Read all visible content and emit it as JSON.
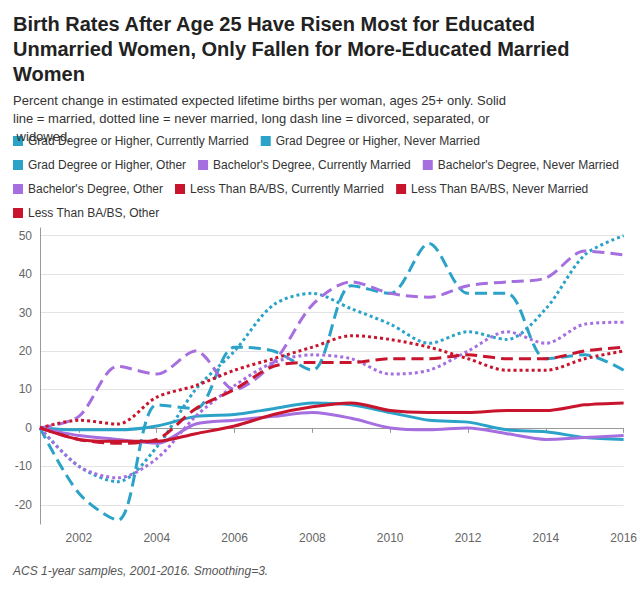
{
  "chart_data": {
    "type": "line",
    "title": "Birth Rates After Age 25 Have Risen Most for Educated Unmarried Women, Only Fallen for More-Educated Married Women",
    "subtitle": "Percent change in estimated expected lifetime births per woman, ages 25+ only. Solid line = married, dotted line = never married, long dash line = divorced, separated, or widowed.",
    "caption": "ACS 1-year samples, 2001-2016. Smoothing=3.",
    "x": [
      2001,
      2002,
      2003,
      2004,
      2005,
      2006,
      2007,
      2008,
      2009,
      2010,
      2011,
      2012,
      2013,
      2014,
      2015,
      2016
    ],
    "xlim": [
      2001,
      2016
    ],
    "xticks": [
      2002,
      2004,
      2006,
      2008,
      2010,
      2012,
      2014,
      2016
    ],
    "ylim": [
      -25,
      52
    ],
    "yticks": [
      -20,
      -10,
      0,
      10,
      20,
      30,
      40,
      50
    ],
    "grid": true,
    "legend": "top",
    "series": [
      {
        "name": "Grad Degree or Higher, Currently Married",
        "color": "#2ba3c9",
        "line_style": "solid",
        "values": [
          0,
          -0.5,
          -0.5,
          0.5,
          3,
          3.5,
          5,
          6.5,
          6,
          4,
          2,
          1.5,
          -0.5,
          -1,
          -2.5,
          -3
        ]
      },
      {
        "name": "Grad Degree or Higher, Never Married",
        "color": "#2ba3c9",
        "line_style": "dotted",
        "values": [
          0,
          -10,
          -14,
          -5,
          10,
          20,
          32,
          35,
          31,
          27,
          22,
          25,
          23,
          31,
          45,
          50
        ]
      },
      {
        "name": "Grad Degree or Higher, Other",
        "color": "#2ba3c9",
        "line_style": "dashed",
        "values": [
          0,
          -17,
          -24,
          6,
          5,
          21,
          20,
          15,
          37,
          35,
          48,
          35,
          35,
          18,
          19,
          15
        ]
      },
      {
        "name": "Bachelor's Degree, Currently Married",
        "color": "#a66fe0",
        "line_style": "solid",
        "values": [
          0,
          -2,
          -3,
          -4,
          1,
          2,
          3,
          4,
          2.5,
          0,
          -0.5,
          0,
          -1.5,
          -3,
          -2.5,
          -2
        ]
      },
      {
        "name": "Bachelor's Degree, Never Married",
        "color": "#a66fe0",
        "line_style": "dotted",
        "values": [
          0,
          -10,
          -13,
          -8,
          3,
          11,
          17,
          19,
          18,
          14,
          15,
          20,
          25,
          22,
          27,
          27.5
        ]
      },
      {
        "name": "Bachelor's Degree, Other",
        "color": "#a66fe0",
        "line_style": "dashed",
        "values": [
          0,
          3,
          16,
          14,
          20,
          10,
          17,
          32,
          38,
          35,
          34,
          37,
          38,
          39,
          46,
          45
        ]
      },
      {
        "name": "Less Than BA/BS, Currently Married",
        "color": "#c8142c",
        "line_style": "solid",
        "values": [
          0,
          -3,
          -3.5,
          -3.5,
          -1.5,
          0.5,
          3.5,
          5.5,
          6.5,
          4.5,
          4,
          4,
          4.5,
          4.5,
          6,
          6.5
        ]
      },
      {
        "name": "Less Than BA/BS, Never Married",
        "color": "#c8142c",
        "line_style": "dotted",
        "values": [
          0,
          2,
          1,
          8,
          11,
          15,
          18,
          21,
          24,
          23,
          21,
          18,
          15,
          15,
          18,
          20
        ]
      },
      {
        "name": "Less Than BA/BS, Other",
        "color": "#c8142c",
        "line_style": "dashed",
        "values": [
          0,
          -3,
          -4,
          -3,
          5,
          10,
          16,
          17,
          17,
          18,
          18,
          19,
          18,
          18,
          20,
          21
        ]
      }
    ]
  }
}
